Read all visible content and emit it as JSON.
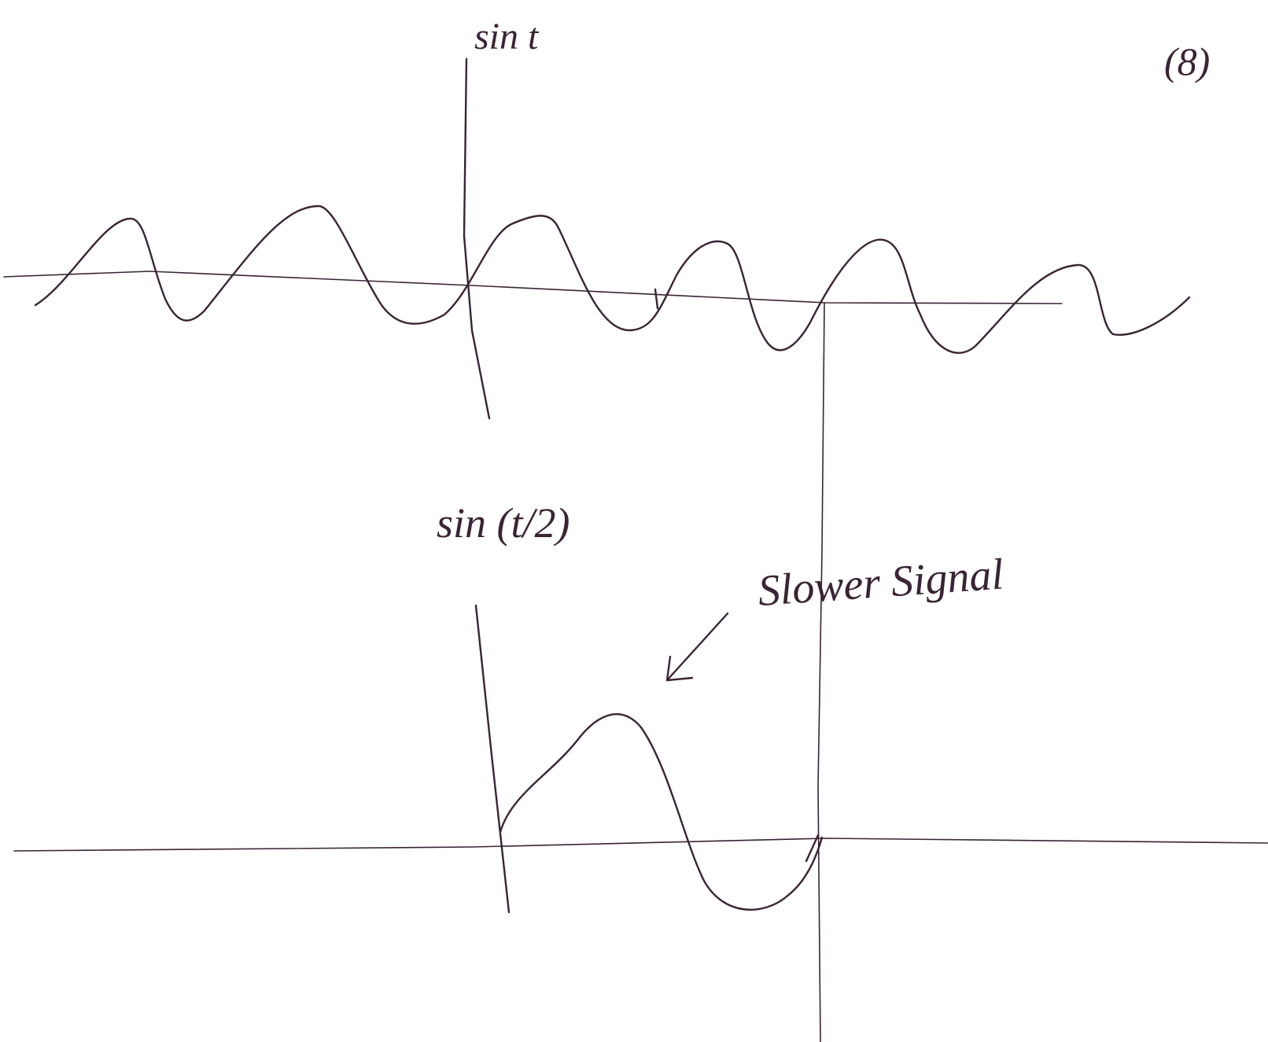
{
  "labels": {
    "top_axis": "sin t",
    "page_number": "(8)",
    "bottom_axis": "sin (t/2)",
    "annotation": "Slower Signal"
  }
}
